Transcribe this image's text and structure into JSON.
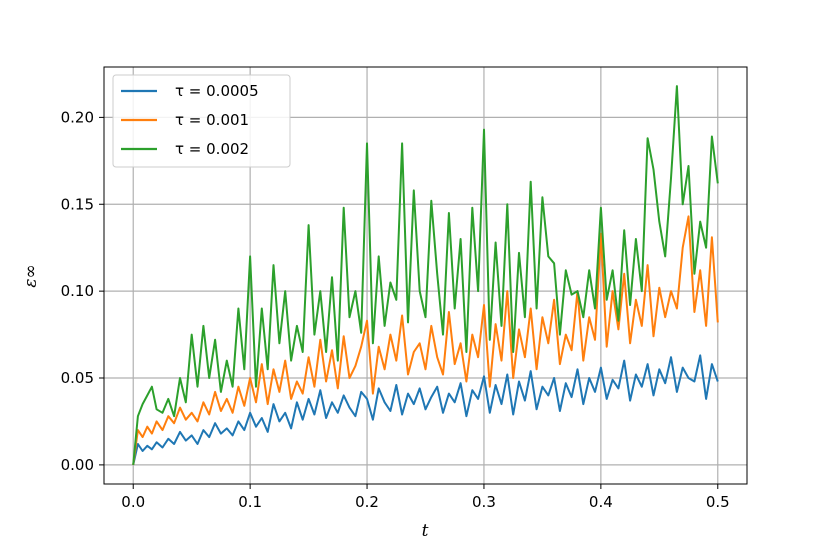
{
  "chart_data": {
    "type": "line",
    "title": "",
    "xlabel": "t",
    "ylabel": "ε∞",
    "xlim": [
      -0.025,
      0.525
    ],
    "ylim": [
      -0.011,
      0.229
    ],
    "xticks": [
      0.0,
      0.1,
      0.2,
      0.3,
      0.4,
      0.5
    ],
    "xtick_labels": [
      "0.0",
      "0.1",
      "0.2",
      "0.3",
      "0.4",
      "0.5"
    ],
    "yticks": [
      0.0,
      0.05,
      0.1,
      0.15,
      0.2
    ],
    "ytick_labels": [
      "0.00",
      "0.05",
      "0.10",
      "0.15",
      "0.20"
    ],
    "grid": true,
    "legend_position": "top-left",
    "series": [
      {
        "name": "τ = 0.0005",
        "color": "#1f77b4",
        "x": [
          0,
          0.004,
          0.008,
          0.012,
          0.016,
          0.02,
          0.025,
          0.03,
          0.035,
          0.04,
          0.045,
          0.05,
          0.055,
          0.06,
          0.065,
          0.07,
          0.075,
          0.08,
          0.085,
          0.09,
          0.095,
          0.1,
          0.105,
          0.11,
          0.115,
          0.12,
          0.125,
          0.13,
          0.135,
          0.14,
          0.145,
          0.15,
          0.155,
          0.16,
          0.165,
          0.17,
          0.175,
          0.18,
          0.185,
          0.19,
          0.195,
          0.2,
          0.205,
          0.21,
          0.215,
          0.22,
          0.225,
          0.23,
          0.235,
          0.24,
          0.245,
          0.25,
          0.255,
          0.26,
          0.265,
          0.27,
          0.275,
          0.28,
          0.285,
          0.29,
          0.295,
          0.3,
          0.305,
          0.31,
          0.315,
          0.32,
          0.325,
          0.33,
          0.335,
          0.34,
          0.345,
          0.35,
          0.355,
          0.36,
          0.365,
          0.37,
          0.375,
          0.38,
          0.385,
          0.39,
          0.395,
          0.4,
          0.405,
          0.41,
          0.415,
          0.42,
          0.425,
          0.43,
          0.435,
          0.44,
          0.445,
          0.45,
          0.455,
          0.46,
          0.465,
          0.47,
          0.475,
          0.48,
          0.485,
          0.49,
          0.495,
          0.5
        ],
        "y": [
          0.0,
          0.012,
          0.008,
          0.011,
          0.009,
          0.013,
          0.01,
          0.015,
          0.012,
          0.019,
          0.014,
          0.017,
          0.012,
          0.02,
          0.016,
          0.024,
          0.018,
          0.021,
          0.017,
          0.025,
          0.02,
          0.03,
          0.022,
          0.027,
          0.019,
          0.035,
          0.025,
          0.03,
          0.021,
          0.036,
          0.026,
          0.038,
          0.029,
          0.043,
          0.027,
          0.036,
          0.03,
          0.04,
          0.033,
          0.028,
          0.042,
          0.038,
          0.026,
          0.044,
          0.036,
          0.031,
          0.046,
          0.029,
          0.041,
          0.035,
          0.044,
          0.032,
          0.039,
          0.045,
          0.03,
          0.041,
          0.036,
          0.047,
          0.028,
          0.043,
          0.038,
          0.051,
          0.03,
          0.046,
          0.035,
          0.052,
          0.029,
          0.048,
          0.037,
          0.054,
          0.032,
          0.045,
          0.04,
          0.05,
          0.031,
          0.047,
          0.039,
          0.055,
          0.035,
          0.05,
          0.042,
          0.056,
          0.038,
          0.049,
          0.044,
          0.06,
          0.037,
          0.052,
          0.045,
          0.058,
          0.04,
          0.055,
          0.047,
          0.062,
          0.042,
          0.056,
          0.05,
          0.048,
          0.063,
          0.038,
          0.058,
          0.048
        ]
      },
      {
        "name": "τ = 0.001",
        "color": "#ff7f0e",
        "x": [
          0,
          0.004,
          0.008,
          0.012,
          0.016,
          0.02,
          0.025,
          0.03,
          0.035,
          0.04,
          0.045,
          0.05,
          0.055,
          0.06,
          0.065,
          0.07,
          0.075,
          0.08,
          0.085,
          0.09,
          0.095,
          0.1,
          0.105,
          0.11,
          0.115,
          0.12,
          0.125,
          0.13,
          0.135,
          0.14,
          0.145,
          0.15,
          0.155,
          0.16,
          0.165,
          0.17,
          0.175,
          0.18,
          0.185,
          0.19,
          0.195,
          0.2,
          0.205,
          0.21,
          0.215,
          0.22,
          0.225,
          0.23,
          0.235,
          0.24,
          0.245,
          0.25,
          0.255,
          0.26,
          0.265,
          0.27,
          0.275,
          0.28,
          0.285,
          0.29,
          0.295,
          0.3,
          0.305,
          0.31,
          0.315,
          0.32,
          0.325,
          0.33,
          0.335,
          0.34,
          0.345,
          0.35,
          0.355,
          0.36,
          0.365,
          0.37,
          0.375,
          0.38,
          0.385,
          0.39,
          0.395,
          0.4,
          0.405,
          0.41,
          0.415,
          0.42,
          0.425,
          0.43,
          0.435,
          0.44,
          0.445,
          0.45,
          0.455,
          0.46,
          0.465,
          0.47,
          0.475,
          0.48,
          0.485,
          0.49,
          0.495,
          0.5
        ],
        "y": [
          0.0,
          0.02,
          0.016,
          0.022,
          0.018,
          0.025,
          0.02,
          0.028,
          0.024,
          0.033,
          0.026,
          0.03,
          0.025,
          0.036,
          0.029,
          0.042,
          0.031,
          0.038,
          0.03,
          0.045,
          0.034,
          0.05,
          0.036,
          0.058,
          0.035,
          0.055,
          0.042,
          0.06,
          0.038,
          0.048,
          0.041,
          0.062,
          0.045,
          0.072,
          0.048,
          0.066,
          0.044,
          0.074,
          0.05,
          0.057,
          0.068,
          0.083,
          0.041,
          0.068,
          0.055,
          0.075,
          0.06,
          0.086,
          0.052,
          0.065,
          0.07,
          0.055,
          0.08,
          0.062,
          0.052,
          0.088,
          0.058,
          0.07,
          0.048,
          0.075,
          0.062,
          0.092,
          0.045,
          0.081,
          0.06,
          0.1,
          0.05,
          0.078,
          0.062,
          0.09,
          0.055,
          0.085,
          0.07,
          0.095,
          0.058,
          0.075,
          0.066,
          0.1,
          0.06,
          0.085,
          0.072,
          0.133,
          0.068,
          0.1,
          0.078,
          0.11,
          0.07,
          0.095,
          0.08,
          0.115,
          0.074,
          0.102,
          0.085,
          0.1,
          0.09,
          0.125,
          0.143,
          0.088,
          0.112,
          0.08,
          0.131,
          0.082
        ]
      },
      {
        "name": "τ = 0.002",
        "color": "#2ca02c",
        "x": [
          0,
          0.004,
          0.008,
          0.012,
          0.016,
          0.02,
          0.025,
          0.03,
          0.035,
          0.04,
          0.045,
          0.05,
          0.055,
          0.06,
          0.065,
          0.07,
          0.075,
          0.08,
          0.085,
          0.09,
          0.095,
          0.1,
          0.105,
          0.11,
          0.115,
          0.12,
          0.125,
          0.13,
          0.135,
          0.14,
          0.145,
          0.15,
          0.155,
          0.16,
          0.165,
          0.17,
          0.175,
          0.18,
          0.185,
          0.19,
          0.195,
          0.2,
          0.205,
          0.21,
          0.215,
          0.22,
          0.225,
          0.23,
          0.235,
          0.24,
          0.245,
          0.25,
          0.255,
          0.26,
          0.265,
          0.27,
          0.275,
          0.28,
          0.285,
          0.29,
          0.295,
          0.3,
          0.305,
          0.31,
          0.315,
          0.32,
          0.325,
          0.33,
          0.335,
          0.34,
          0.345,
          0.35,
          0.355,
          0.36,
          0.365,
          0.37,
          0.375,
          0.38,
          0.385,
          0.39,
          0.395,
          0.4,
          0.405,
          0.41,
          0.415,
          0.42,
          0.425,
          0.43,
          0.435,
          0.44,
          0.445,
          0.45,
          0.455,
          0.46,
          0.465,
          0.47,
          0.475,
          0.48,
          0.485,
          0.49,
          0.495,
          0.5
        ],
        "y": [
          0.0,
          0.028,
          0.035,
          0.04,
          0.045,
          0.032,
          0.03,
          0.038,
          0.028,
          0.05,
          0.036,
          0.075,
          0.045,
          0.08,
          0.05,
          0.072,
          0.042,
          0.06,
          0.045,
          0.09,
          0.055,
          0.12,
          0.045,
          0.09,
          0.055,
          0.115,
          0.07,
          0.1,
          0.06,
          0.08,
          0.065,
          0.138,
          0.075,
          0.1,
          0.065,
          0.108,
          0.06,
          0.148,
          0.085,
          0.1,
          0.076,
          0.185,
          0.07,
          0.12,
          0.08,
          0.105,
          0.095,
          0.185,
          0.082,
          0.158,
          0.1,
          0.085,
          0.152,
          0.11,
          0.075,
          0.145,
          0.09,
          0.13,
          0.065,
          0.148,
          0.1,
          0.193,
          0.072,
          0.128,
          0.08,
          0.15,
          0.065,
          0.122,
          0.085,
          0.163,
          0.09,
          0.154,
          0.12,
          0.116,
          0.075,
          0.112,
          0.098,
          0.1,
          0.085,
          0.112,
          0.09,
          0.148,
          0.095,
          0.112,
          0.083,
          0.135,
          0.092,
          0.13,
          0.1,
          0.188,
          0.17,
          0.14,
          0.12,
          0.165,
          0.218,
          0.15,
          0.172,
          0.11,
          0.14,
          0.125,
          0.189,
          0.162
        ]
      }
    ]
  }
}
